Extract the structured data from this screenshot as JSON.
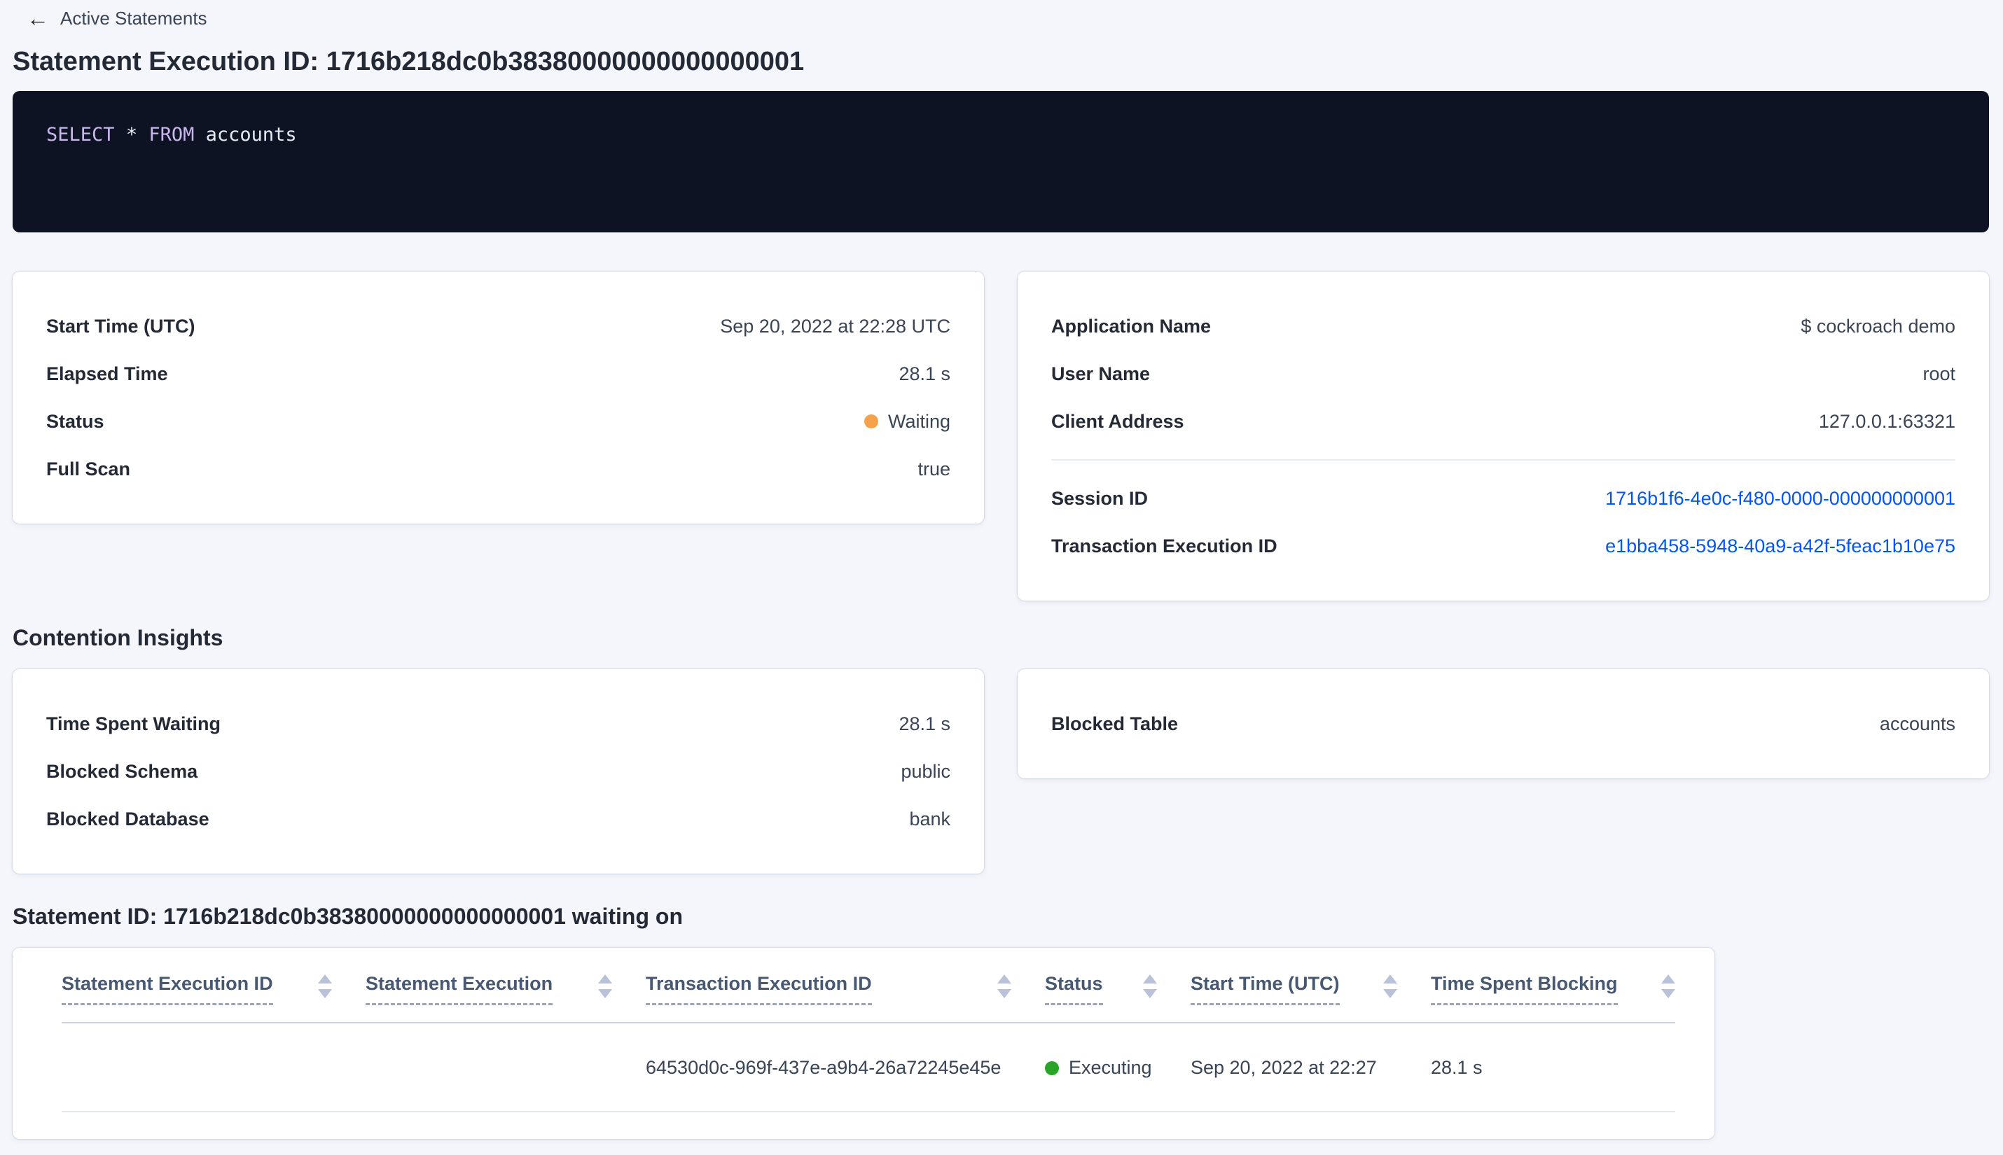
{
  "colors": {
    "page_background": "#f4f6fb",
    "link_blue": "#0055ff",
    "code_background": "#0d1322",
    "sql_keyword": "#c9b5f0",
    "sql_text": "#e7ecf3",
    "status_waiting_dot": "#f7a24b",
    "status_executing_dot": "#2aa52a",
    "heading_text": "#242a35"
  },
  "breadcrumb": {
    "back_arrow": "←",
    "back_label": "Active Statements"
  },
  "header": {
    "title": "Statement Execution ID: 1716b218dc0b38380000000000000001"
  },
  "sql": {
    "select_keyword": "SELECT",
    "star": "*",
    "from_keyword": "FROM",
    "table_name": "accounts"
  },
  "overview_card": {
    "rows": [
      {
        "label": "Start Time (UTC)",
        "value": "Sep 20, 2022 at 22:28 UTC"
      },
      {
        "label": "Elapsed Time",
        "value": "28.1 s"
      },
      {
        "label": "Status",
        "value": "Waiting"
      },
      {
        "label": "Full Scan",
        "value": "true"
      }
    ]
  },
  "session_card": {
    "rows": [
      {
        "label": "Application Name",
        "value": "$ cockroach demo"
      },
      {
        "label": "User Name",
        "value": "root"
      },
      {
        "label": "Client Address",
        "value": "127.0.0.1:63321"
      }
    ],
    "links": [
      {
        "label": "Session ID",
        "value": "1716b1f6-4e0c-f480-0000-000000000001"
      },
      {
        "label": "Transaction Execution ID",
        "value": "e1bba458-5948-40a9-a42f-5feac1b10e75"
      }
    ]
  },
  "contention": {
    "heading": "Contention Insights",
    "card": {
      "rows": [
        {
          "label": "Time Spent Waiting",
          "value": "28.1 s"
        },
        {
          "label": "Blocked Schema",
          "value": "public"
        },
        {
          "label": "Blocked Database",
          "value": "bank"
        }
      ]
    },
    "blocked_table_card": {
      "label": "Blocked Table",
      "value": "accounts"
    }
  },
  "waiting_table": {
    "heading": "Statement ID: 1716b218dc0b38380000000000000001 waiting on",
    "columns": [
      {
        "label": "Statement Execution ID"
      },
      {
        "label": "Statement Execution"
      },
      {
        "label": "Transaction Execution ID"
      },
      {
        "label": "Status"
      },
      {
        "label": "Start Time (UTC)"
      },
      {
        "label": "Time Spent Blocking"
      }
    ],
    "rows": [
      {
        "statement_execution_id": "",
        "statement_execution": "",
        "transaction_execution_id": "64530d0c-969f-437e-a9b4-26a72245e45e",
        "status": "Executing",
        "start_time": "Sep 20, 2022 at 22:27",
        "time_spent_blocking": "28.1 s"
      }
    ]
  }
}
